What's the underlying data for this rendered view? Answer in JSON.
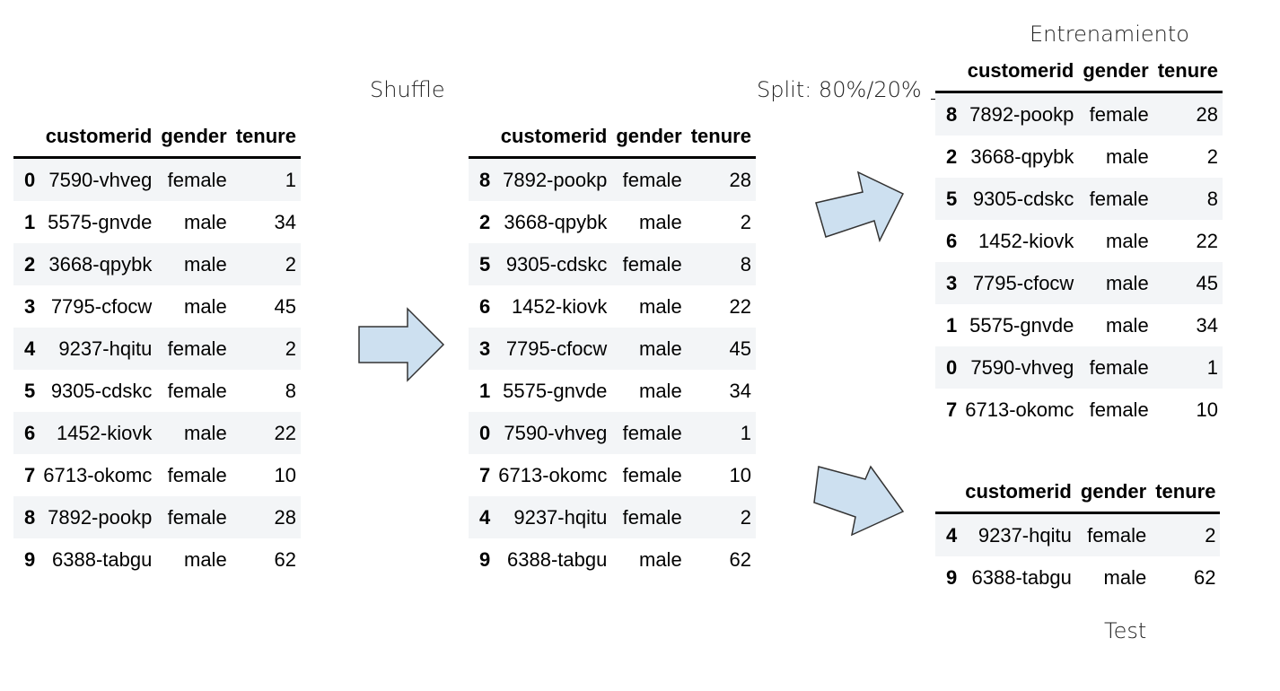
{
  "labels": {
    "shuffle": "Shuffle",
    "split": "Split: 80%/20%",
    "train": "Entrenamiento",
    "test": "Test"
  },
  "columns": [
    "customerid",
    "gender",
    "tenure"
  ],
  "original": [
    {
      "idx": "0",
      "customerid": "7590-vhveg",
      "gender": "female",
      "tenure": "1"
    },
    {
      "idx": "1",
      "customerid": "5575-gnvde",
      "gender": "male",
      "tenure": "34"
    },
    {
      "idx": "2",
      "customerid": "3668-qpybk",
      "gender": "male",
      "tenure": "2"
    },
    {
      "idx": "3",
      "customerid": "7795-cfocw",
      "gender": "male",
      "tenure": "45"
    },
    {
      "idx": "4",
      "customerid": "9237-hqitu",
      "gender": "female",
      "tenure": "2"
    },
    {
      "idx": "5",
      "customerid": "9305-cdskc",
      "gender": "female",
      "tenure": "8"
    },
    {
      "idx": "6",
      "customerid": "1452-kiovk",
      "gender": "male",
      "tenure": "22"
    },
    {
      "idx": "7",
      "customerid": "6713-okomc",
      "gender": "female",
      "tenure": "10"
    },
    {
      "idx": "8",
      "customerid": "7892-pookp",
      "gender": "female",
      "tenure": "28"
    },
    {
      "idx": "9",
      "customerid": "6388-tabgu",
      "gender": "male",
      "tenure": "62"
    }
  ],
  "shuffled": [
    {
      "idx": "8",
      "customerid": "7892-pookp",
      "gender": "female",
      "tenure": "28"
    },
    {
      "idx": "2",
      "customerid": "3668-qpybk",
      "gender": "male",
      "tenure": "2"
    },
    {
      "idx": "5",
      "customerid": "9305-cdskc",
      "gender": "female",
      "tenure": "8"
    },
    {
      "idx": "6",
      "customerid": "1452-kiovk",
      "gender": "male",
      "tenure": "22"
    },
    {
      "idx": "3",
      "customerid": "7795-cfocw",
      "gender": "male",
      "tenure": "45"
    },
    {
      "idx": "1",
      "customerid": "5575-gnvde",
      "gender": "male",
      "tenure": "34"
    },
    {
      "idx": "0",
      "customerid": "7590-vhveg",
      "gender": "female",
      "tenure": "1"
    },
    {
      "idx": "7",
      "customerid": "6713-okomc",
      "gender": "female",
      "tenure": "10"
    },
    {
      "idx": "4",
      "customerid": "9237-hqitu",
      "gender": "female",
      "tenure": "2"
    },
    {
      "idx": "9",
      "customerid": "6388-tabgu",
      "gender": "male",
      "tenure": "62"
    }
  ],
  "train": [
    {
      "idx": "8",
      "customerid": "7892-pookp",
      "gender": "female",
      "tenure": "28"
    },
    {
      "idx": "2",
      "customerid": "3668-qpybk",
      "gender": "male",
      "tenure": "2"
    },
    {
      "idx": "5",
      "customerid": "9305-cdskc",
      "gender": "female",
      "tenure": "8"
    },
    {
      "idx": "6",
      "customerid": "1452-kiovk",
      "gender": "male",
      "tenure": "22"
    },
    {
      "idx": "3",
      "customerid": "7795-cfocw",
      "gender": "male",
      "tenure": "45"
    },
    {
      "idx": "1",
      "customerid": "5575-gnvde",
      "gender": "male",
      "tenure": "34"
    },
    {
      "idx": "0",
      "customerid": "7590-vhveg",
      "gender": "female",
      "tenure": "1"
    },
    {
      "idx": "7",
      "customerid": "6713-okomc",
      "gender": "female",
      "tenure": "10"
    }
  ],
  "test": [
    {
      "idx": "4",
      "customerid": "9237-hqitu",
      "gender": "female",
      "tenure": "2"
    },
    {
      "idx": "9",
      "customerid": "6388-tabgu",
      "gender": "male",
      "tenure": "62"
    }
  ],
  "colors": {
    "arrow_fill": "#cde0f0",
    "arrow_stroke": "#333333",
    "stripe": "#f3f5f7"
  }
}
